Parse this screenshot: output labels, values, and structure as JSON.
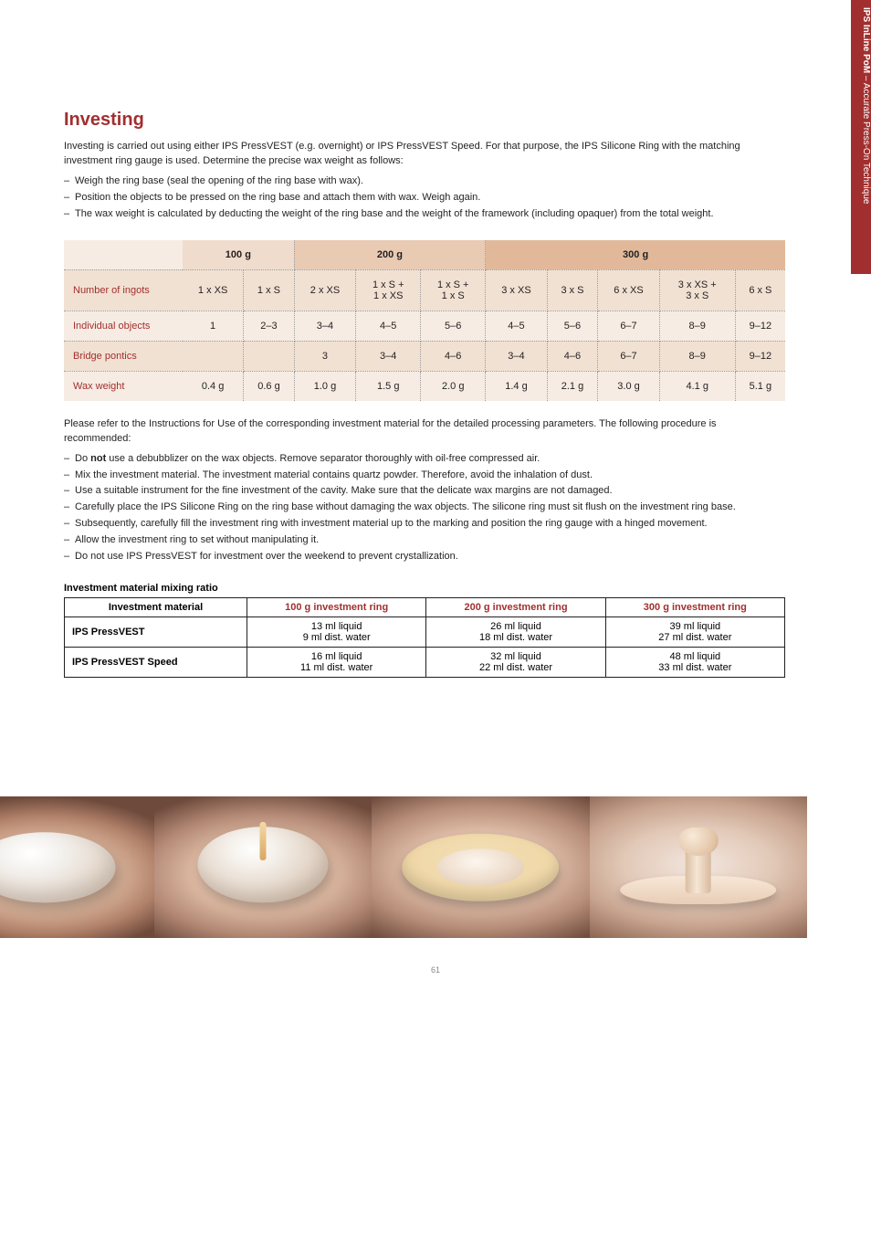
{
  "sidebar": {
    "bold": "IPS InLine PoM",
    "rest": " – Accurate Press-On Technique"
  },
  "title": "Investing",
  "intro": "Investing is carried out using either IPS PressVEST (e.g. overnight) or IPS PressVEST Speed. For that purpose, the IPS Silicone Ring with the matching investment ring gauge is used. Determine the precise wax weight as follows:",
  "bullets1": [
    "Weigh the ring base (seal the opening of the ring base with wax).",
    "Position the objects to be pressed on the ring base and attach them with wax. Weigh again.",
    "The wax weight is calculated by deducting the weight of the ring base and the weight of the framework (including opaquer) from the total weight."
  ],
  "ingot": {
    "headers": {
      "g100": "100 g",
      "g200": "200 g",
      "g300": "300 g"
    },
    "rows": [
      {
        "label": "Number of ingots",
        "g100": [
          "1 x XS",
          "1 x S"
        ],
        "g200": [
          "2 x XS",
          "1 x S +\n1 x XS",
          "1 x S +\n1 x S"
        ],
        "g300": [
          "3 x XS",
          "3 x S",
          "6 x XS",
          "3 x XS +\n3 x S",
          "6 x S"
        ]
      },
      {
        "label": "Individual objects",
        "g100": [
          "1",
          "2–3"
        ],
        "g200": [
          "3–4",
          "4–5",
          "5–6"
        ],
        "g300": [
          "4–5",
          "5–6",
          "6–7",
          "8–9",
          "9–12"
        ]
      },
      {
        "label": "Bridge pontics",
        "g100": [
          "",
          ""
        ],
        "g200": [
          "3",
          "3–4",
          "4–6"
        ],
        "g300": [
          "3–4",
          "4–6",
          "6–7",
          "8–9",
          "9–12"
        ]
      },
      {
        "label": "Wax weight",
        "g100": [
          "0.4 g",
          "0.6 g"
        ],
        "g200": [
          "1.0 g",
          "1.5 g",
          "2.0 g"
        ],
        "g300": [
          "1.4 g",
          "2.1 g",
          "3.0 g",
          "4.1 g",
          "5.1 g"
        ]
      }
    ]
  },
  "note": "Please refer to the Instructions for Use of the corresponding investment material for the detailed processing parameters. The following procedure is recommended:",
  "bullets2": [
    "Do <b>not</b> use a debubblizer on the wax objects. Remove separator thoroughly with oil-free compressed air.",
    "Mix the investment material. The investment material contains quartz powder. Therefore, avoid the inhalation of dust.",
    "Use a suitable instrument for the fine investment of the cavity. Make sure that the delicate wax margins are not damaged.",
    "Carefully place the IPS Silicone Ring on the ring base without damaging the wax objects. The silicone ring must sit flush on the investment ring base.",
    "Subsequently, carefully fill the investment ring with investment material up to the marking and position the ring gauge with a hinged movement.",
    "Allow the investment ring to set without manipulating it.",
    "Do not use IPS PressVEST for investment over the weekend to prevent crystallization."
  ],
  "mix": {
    "title": "Investment material mixing ratio",
    "headers": [
      "Investment material",
      "100 g investment ring",
      "200 g investment ring",
      "300 g investment ring"
    ],
    "rows": [
      {
        "label": "IPS PressVEST",
        "c100": "13 ml liquid\n9 ml dist. water",
        "c200": "26 ml liquid\n18 ml dist. water",
        "c300": "39 ml liquid\n27 ml dist. water"
      },
      {
        "label": "IPS PressVEST Speed",
        "c100": "16 ml liquid\n11 ml dist. water",
        "c200": "32 ml liquid\n22 ml dist. water",
        "c300": "48 ml liquid\n33 ml dist. water"
      }
    ]
  },
  "pagenum": "61",
  "colors": {
    "brand": "#a22f2f",
    "hdr100": "#f0dccc",
    "hdr200": "#e9cab3",
    "hdr300": "#e1b99a",
    "rowOdd": "#f6ece3",
    "rowEven": "#f1e1d3"
  }
}
